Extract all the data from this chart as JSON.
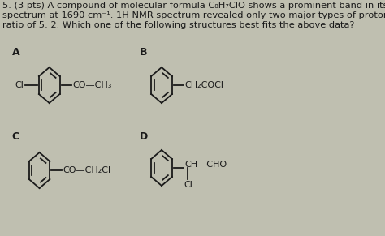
{
  "title_line1": "5. (3 pts) A compound of molecular formula C₈H₇ClO shows a prominent band in its IR",
  "title_line2": "spectrum at 1690 cm⁻¹. 1H NMR spectrum revealed only two major types of protons in the",
  "title_line3": "ratio of 5: 2. Which one of the following structures best fits the above data?",
  "bg_color": "#bfbfb0",
  "text_color": "#1a1a1a",
  "bond_color": "#1a1a1a",
  "font_size_title": 8.2,
  "font_size_label": 9.0,
  "font_size_chem": 8.0,
  "fig_width": 4.74,
  "fig_height": 2.91,
  "dpi": 100
}
